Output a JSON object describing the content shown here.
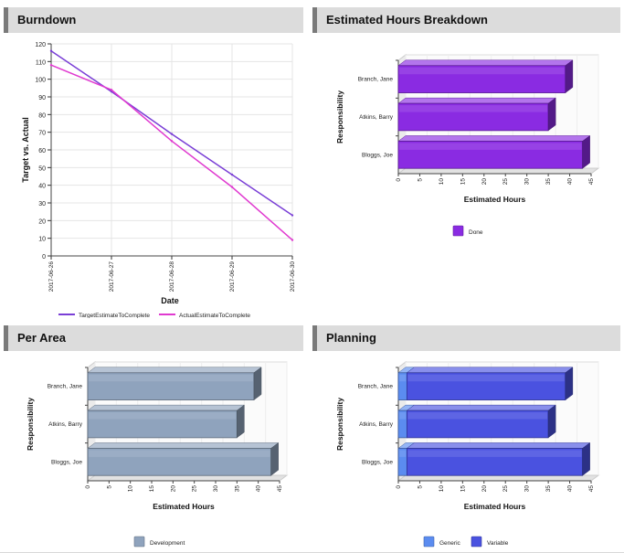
{
  "panels": {
    "burndown": {
      "title": "Burndown"
    },
    "hours": {
      "title": "Estimated Hours Breakdown"
    },
    "area": {
      "title": "Per Area"
    },
    "planning": {
      "title": "Planning"
    }
  },
  "chart_data": [
    {
      "id": "burndown",
      "type": "line",
      "title": "",
      "xlabel": "Date",
      "ylabel": "Target vs. Actual",
      "x": [
        "2017-06-26",
        "2017-06-27",
        "2017-06-28",
        "2017-06-29",
        "2017-06-30"
      ],
      "ylim": [
        0,
        120
      ],
      "yticks": [
        0,
        10,
        20,
        30,
        40,
        50,
        60,
        70,
        80,
        90,
        100,
        110,
        120
      ],
      "grid": true,
      "legend_position": "bottom",
      "series": [
        {
          "name": "TargetEstimateToComplete",
          "color": "#7a3fd6",
          "values": [
            116,
            93,
            69,
            46,
            23
          ]
        },
        {
          "name": "ActualEstimateToComplete",
          "color": "#e03ad0",
          "values": [
            108,
            94,
            65,
            39,
            9
          ]
        }
      ]
    },
    {
      "id": "hours",
      "type": "bar",
      "orientation": "horizontal",
      "title": "",
      "xlabel": "Estimated Hours",
      "ylabel": "Responsibility",
      "categories": [
        "Branch, Jane",
        "Atkins, Barry",
        "Bloggs, Joe"
      ],
      "xlim": [
        0,
        45
      ],
      "xticks": [
        0,
        5,
        10,
        15,
        20,
        25,
        30,
        35,
        40,
        45
      ],
      "legend_position": "bottom",
      "series": [
        {
          "name": "Done",
          "color": "#8a2be2",
          "values": [
            39,
            35,
            43
          ]
        }
      ]
    },
    {
      "id": "area",
      "type": "bar",
      "orientation": "horizontal",
      "title": "",
      "xlabel": "Estimated Hours",
      "ylabel": "Responsibility",
      "categories": [
        "Branch, Jane",
        "Atkins, Barry",
        "Bloggs, Joe"
      ],
      "xlim": [
        0,
        45
      ],
      "xticks": [
        0,
        5,
        10,
        15,
        20,
        25,
        30,
        35,
        40,
        45
      ],
      "legend_position": "bottom",
      "series": [
        {
          "name": "Development",
          "color": "#8fa3bd",
          "values": [
            39,
            35,
            43
          ]
        }
      ]
    },
    {
      "id": "planning",
      "type": "bar",
      "orientation": "horizontal",
      "stacked": true,
      "title": "",
      "xlabel": "Estimated Hours",
      "ylabel": "Responsibility",
      "categories": [
        "Branch, Jane",
        "Atkins, Barry",
        "Bloggs, Joe"
      ],
      "xlim": [
        0,
        45
      ],
      "xticks": [
        0,
        5,
        10,
        15,
        20,
        25,
        30,
        35,
        40,
        45
      ],
      "legend_position": "bottom",
      "series": [
        {
          "name": "Generic",
          "color": "#5b8cf0",
          "values": [
            2,
            2,
            2
          ]
        },
        {
          "name": "Variable",
          "color": "#4a52e0",
          "values": [
            37,
            33,
            41
          ]
        }
      ]
    }
  ]
}
